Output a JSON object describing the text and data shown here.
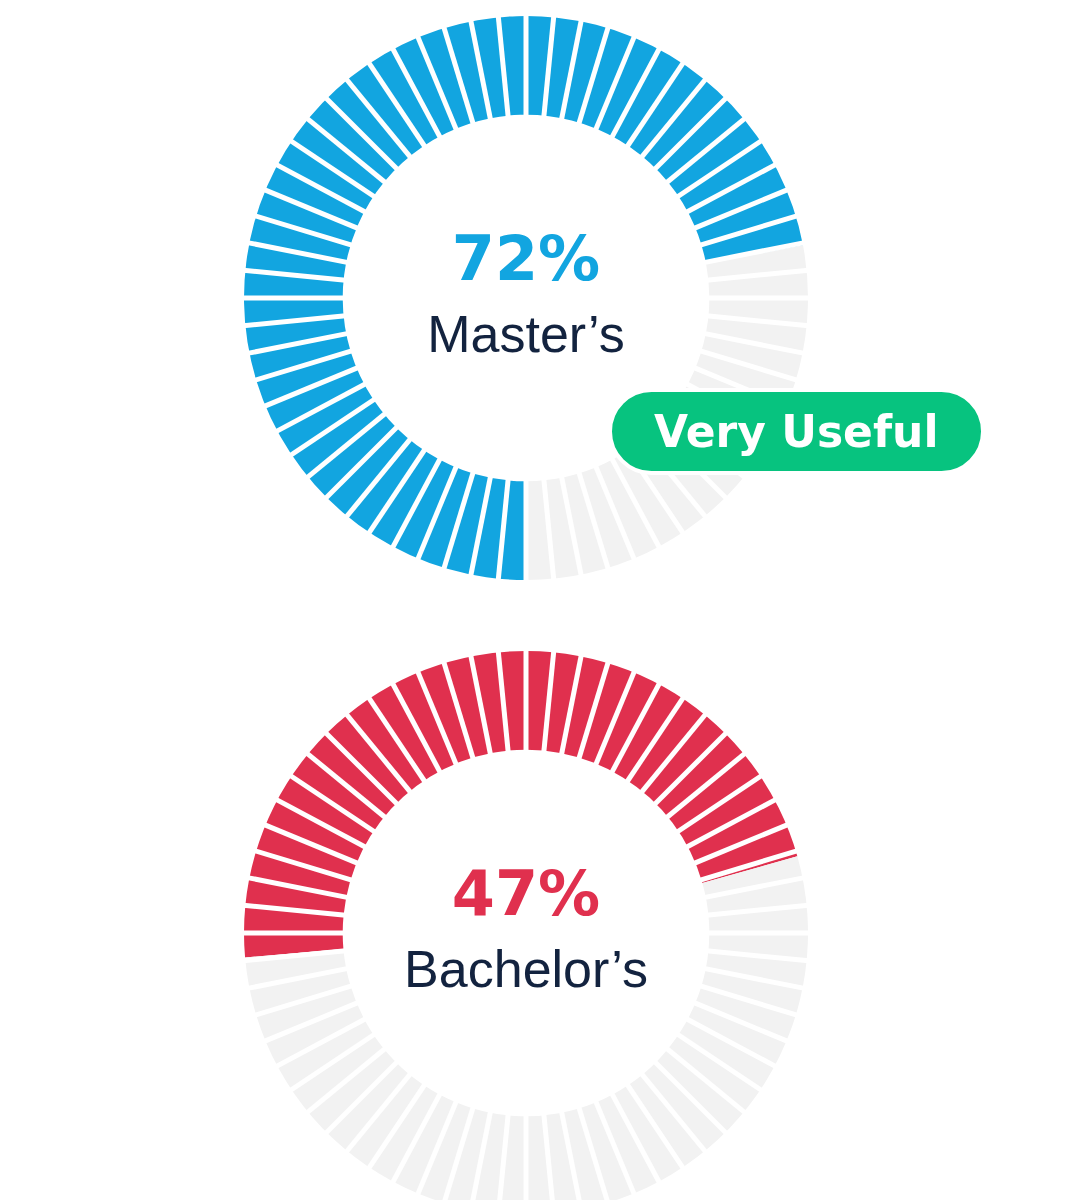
{
  "chart_data": [
    {
      "type": "donut",
      "categories": [
        "Master’s",
        null
      ],
      "values": [
        72,
        28
      ],
      "colors": [
        "#12a5e0",
        "#f2f2f2"
      ],
      "value_labels": [
        "72%",
        null
      ],
      "annotations": [
        "Very Useful"
      ]
    },
    {
      "type": "donut",
      "categories": [
        "Bachelor’s",
        null
      ],
      "values": [
        47,
        53
      ],
      "colors": [
        "#e0304e",
        "#f2f2f2"
      ],
      "value_labels": [
        "47%",
        null
      ]
    }
  ]
}
